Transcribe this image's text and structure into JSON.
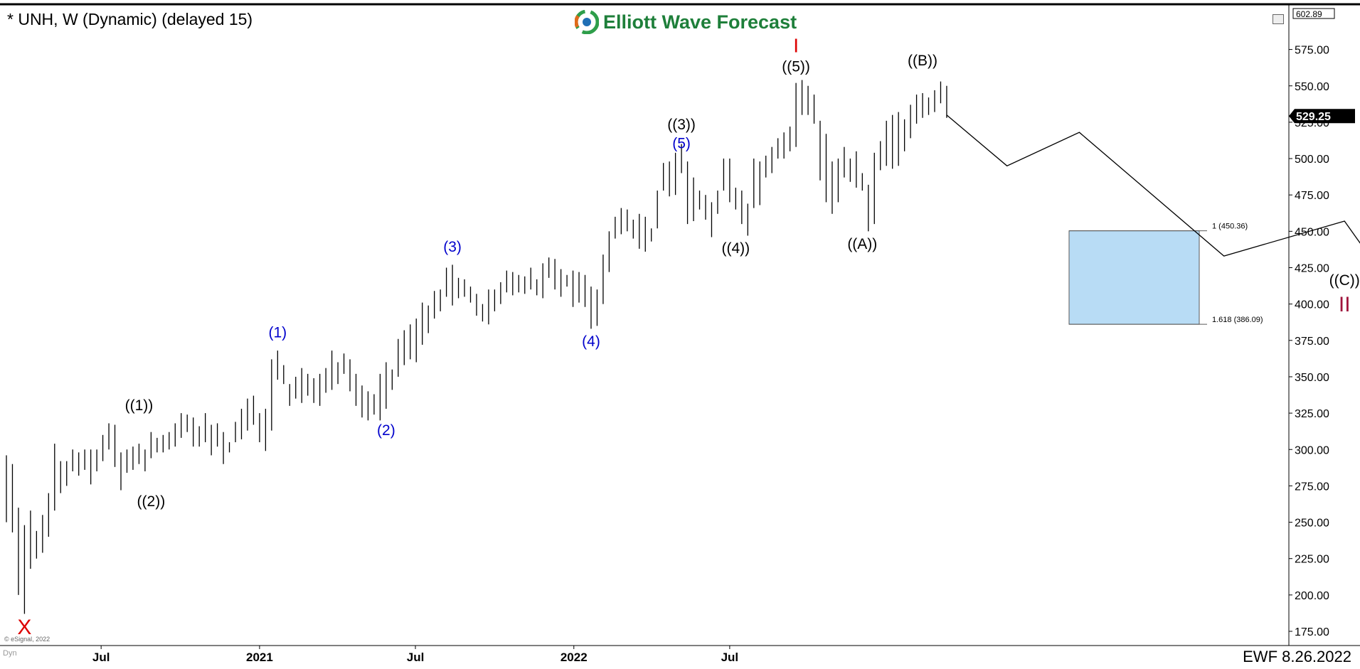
{
  "header": {
    "symbol_title": "* UNH, W (Dynamic) (delayed 15)",
    "logo_text": "Elliott Wave Forecast",
    "logo_icon": "elliott-wave-logo-icon"
  },
  "footer": {
    "stamp": "EWF 8.26.2022",
    "copyright": "© eSignal, 2022",
    "dyn_label": "Dyn"
  },
  "colors": {
    "bars": "#000000",
    "wave_black": "#000000",
    "wave_blue": "#0000cc",
    "wave_red": "#dd0000",
    "wave_maroon": "#a0143c",
    "target_fill": "#b8dcf5",
    "target_border": "#5a5a5a",
    "price_box": "#000000"
  },
  "chart_data": {
    "type": "ohlc-bar",
    "symbol": "UNH",
    "timeframe": "Weekly",
    "ylim": [
      165,
      607
    ],
    "y_ticks": [
      175,
      200,
      225,
      250,
      275,
      300,
      325,
      350,
      375,
      400,
      425,
      450,
      475,
      500,
      525,
      550,
      575
    ],
    "y_tick_labels": [
      "175.00",
      "200.00",
      "225.00",
      "250.00",
      "275.00",
      "300.00",
      "325.00",
      "350.00",
      "375.00",
      "400.00",
      "425.00",
      "450.00",
      "475.00",
      "500.00",
      "525.00",
      "550.00",
      "575.00"
    ],
    "x_tick_labels": [
      {
        "label": "Jul",
        "date": "2020-07-01"
      },
      {
        "label": "2021",
        "date": "2021-01-01"
      },
      {
        "label": "Jul",
        "date": "2021-07-01"
      },
      {
        "label": "2022",
        "date": "2022-01-01"
      },
      {
        "label": "Jul",
        "date": "2022-07-01"
      }
    ],
    "last_price": "529.25",
    "top_price_label": "602.89",
    "bars": [
      [
        296,
        250
      ],
      [
        290,
        243
      ],
      [
        260,
        200
      ],
      [
        248,
        187
      ],
      [
        258,
        218
      ],
      [
        244,
        225
      ],
      [
        255,
        229
      ],
      [
        270,
        240
      ],
      [
        304,
        258
      ],
      [
        292,
        270
      ],
      [
        292,
        275
      ],
      [
        300,
        285
      ],
      [
        298,
        282
      ],
      [
        300,
        286
      ],
      [
        300,
        276
      ],
      [
        300,
        285
      ],
      [
        310,
        292
      ],
      [
        318,
        300
      ],
      [
        317,
        288
      ],
      [
        298,
        272
      ],
      [
        300,
        284
      ],
      [
        302,
        286
      ],
      [
        304,
        290
      ],
      [
        300,
        285
      ],
      [
        312,
        294
      ],
      [
        308,
        298
      ],
      [
        310,
        298
      ],
      [
        312,
        300
      ],
      [
        318,
        302
      ],
      [
        325,
        308
      ],
      [
        324,
        312
      ],
      [
        322,
        302
      ],
      [
        316,
        302
      ],
      [
        325,
        305
      ],
      [
        317,
        296
      ],
      [
        318,
        302
      ],
      [
        312,
        290
      ],
      [
        305,
        298
      ],
      [
        319,
        305
      ],
      [
        328,
        307
      ],
      [
        335,
        313
      ],
      [
        337,
        317
      ],
      [
        325,
        305
      ],
      [
        328,
        299
      ],
      [
        362,
        313
      ],
      [
        368,
        348
      ],
      [
        358,
        345
      ],
      [
        345,
        330
      ],
      [
        350,
        335
      ],
      [
        356,
        332
      ],
      [
        352,
        337
      ],
      [
        349,
        332
      ],
      [
        352,
        330
      ],
      [
        356,
        339
      ],
      [
        368,
        341
      ],
      [
        360,
        345
      ],
      [
        366,
        352
      ],
      [
        362,
        340
      ],
      [
        352,
        330
      ],
      [
        344,
        322
      ],
      [
        340,
        320
      ],
      [
        338,
        324
      ],
      [
        352,
        320
      ],
      [
        360,
        328
      ],
      [
        355,
        341
      ],
      [
        376,
        350
      ],
      [
        382,
        358
      ],
      [
        386,
        362
      ],
      [
        390,
        360
      ],
      [
        401,
        372
      ],
      [
        399,
        380
      ],
      [
        409,
        390
      ],
      [
        410,
        395
      ],
      [
        425,
        405
      ],
      [
        427,
        399
      ],
      [
        418,
        404
      ],
      [
        417,
        405
      ],
      [
        412,
        401
      ],
      [
        407,
        392
      ],
      [
        400,
        388
      ],
      [
        410,
        386
      ],
      [
        410,
        395
      ],
      [
        415,
        400
      ],
      [
        423,
        408
      ],
      [
        422,
        406
      ],
      [
        420,
        408
      ],
      [
        419,
        407
      ],
      [
        425,
        410
      ],
      [
        417,
        406
      ],
      [
        428,
        404
      ],
      [
        432,
        418
      ],
      [
        431,
        410
      ],
      [
        424,
        405
      ],
      [
        420,
        412
      ],
      [
        423,
        398
      ],
      [
        422,
        401
      ],
      [
        420,
        398
      ],
      [
        412,
        383
      ],
      [
        410,
        385
      ],
      [
        434,
        400
      ],
      [
        450,
        422
      ],
      [
        460,
        445
      ],
      [
        466,
        448
      ],
      [
        465,
        450
      ],
      [
        458,
        445
      ],
      [
        462,
        438
      ],
      [
        460,
        436
      ],
      [
        452,
        443
      ],
      [
        478,
        452
      ],
      [
        497,
        478
      ],
      [
        498,
        474
      ],
      [
        504,
        475
      ],
      [
        510,
        490
      ],
      [
        498,
        455
      ],
      [
        487,
        457
      ],
      [
        478,
        465
      ],
      [
        475,
        458
      ],
      [
        470,
        446
      ],
      [
        478,
        462
      ],
      [
        500,
        478
      ],
      [
        500,
        470
      ],
      [
        480,
        465
      ],
      [
        478,
        455
      ],
      [
        469,
        447
      ],
      [
        500,
        466
      ],
      [
        498,
        468
      ],
      [
        502,
        487
      ],
      [
        508,
        490
      ],
      [
        514,
        500
      ],
      [
        518,
        500
      ],
      [
        522,
        505
      ],
      [
        552,
        508
      ],
      [
        554,
        530
      ],
      [
        550,
        530
      ],
      [
        544,
        524
      ],
      [
        526,
        485
      ],
      [
        517,
        470
      ],
      [
        498,
        462
      ],
      [
        500,
        470
      ],
      [
        508,
        487
      ],
      [
        500,
        484
      ],
      [
        505,
        480
      ],
      [
        490,
        478
      ],
      [
        482,
        450
      ],
      [
        504,
        455
      ],
      [
        512,
        492
      ],
      [
        526,
        495
      ],
      [
        530,
        493
      ],
      [
        532,
        495
      ],
      [
        527,
        505
      ],
      [
        537,
        514
      ],
      [
        544,
        524
      ],
      [
        545,
        528
      ],
      [
        542,
        530
      ],
      [
        547,
        532
      ],
      [
        553,
        538
      ],
      [
        550,
        528
      ]
    ],
    "projection_path": [
      [
        530,
        0
      ],
      [
        495,
        10
      ],
      [
        518,
        22
      ],
      [
        433,
        46
      ],
      [
        457,
        66
      ],
      [
        422,
        72
      ],
      [
        548,
        171
      ]
    ],
    "fib_target": {
      "upper_label": "1 (450.36)",
      "upper_value": 450.36,
      "lower_label": "1.618 (386.09)",
      "lower_value": 386.09
    },
    "wave_labels": [
      {
        "text": "X",
        "bar": 3,
        "price": 173,
        "color": "red",
        "size": 30
      },
      {
        "text": "((1))",
        "bar": 22,
        "price": 327,
        "color": "black",
        "size": 21
      },
      {
        "text": "((2))",
        "bar": 24,
        "price": 261,
        "color": "black",
        "size": 21
      },
      {
        "text": "(1)",
        "bar": 45,
        "price": 377,
        "color": "blue",
        "size": 21
      },
      {
        "text": "(2)",
        "bar": 63,
        "price": 310,
        "color": "blue",
        "size": 21
      },
      {
        "text": "(3)",
        "bar": 74,
        "price": 436,
        "color": "blue",
        "size": 21
      },
      {
        "text": "(4)",
        "bar": 97,
        "price": 371,
        "color": "blue",
        "size": 21
      },
      {
        "text": "((3))",
        "bar": 112,
        "price": 520,
        "color": "black",
        "size": 21
      },
      {
        "text": "(5)",
        "bar": 112,
        "price": 507,
        "color": "blue",
        "size": 21
      },
      {
        "text": "((4))",
        "bar": 121,
        "price": 435,
        "color": "black",
        "size": 21
      },
      {
        "text": "I",
        "bar": 131,
        "price": 573,
        "color": "red",
        "size": 28
      },
      {
        "text": "((5))",
        "bar": 131,
        "price": 560,
        "color": "black",
        "size": 21
      },
      {
        "text": "((A))",
        "bar": 142,
        "price": 438,
        "color": "black",
        "size": 21
      },
      {
        "text": "((B))",
        "bar": 152,
        "price": 564,
        "color": "black",
        "size": 21
      }
    ],
    "target_labels": [
      {
        "text": "((C))",
        "price": 413,
        "color": "black",
        "size": 21
      },
      {
        "text": "II",
        "price": 395,
        "color": "maroon",
        "size": 30
      }
    ]
  }
}
